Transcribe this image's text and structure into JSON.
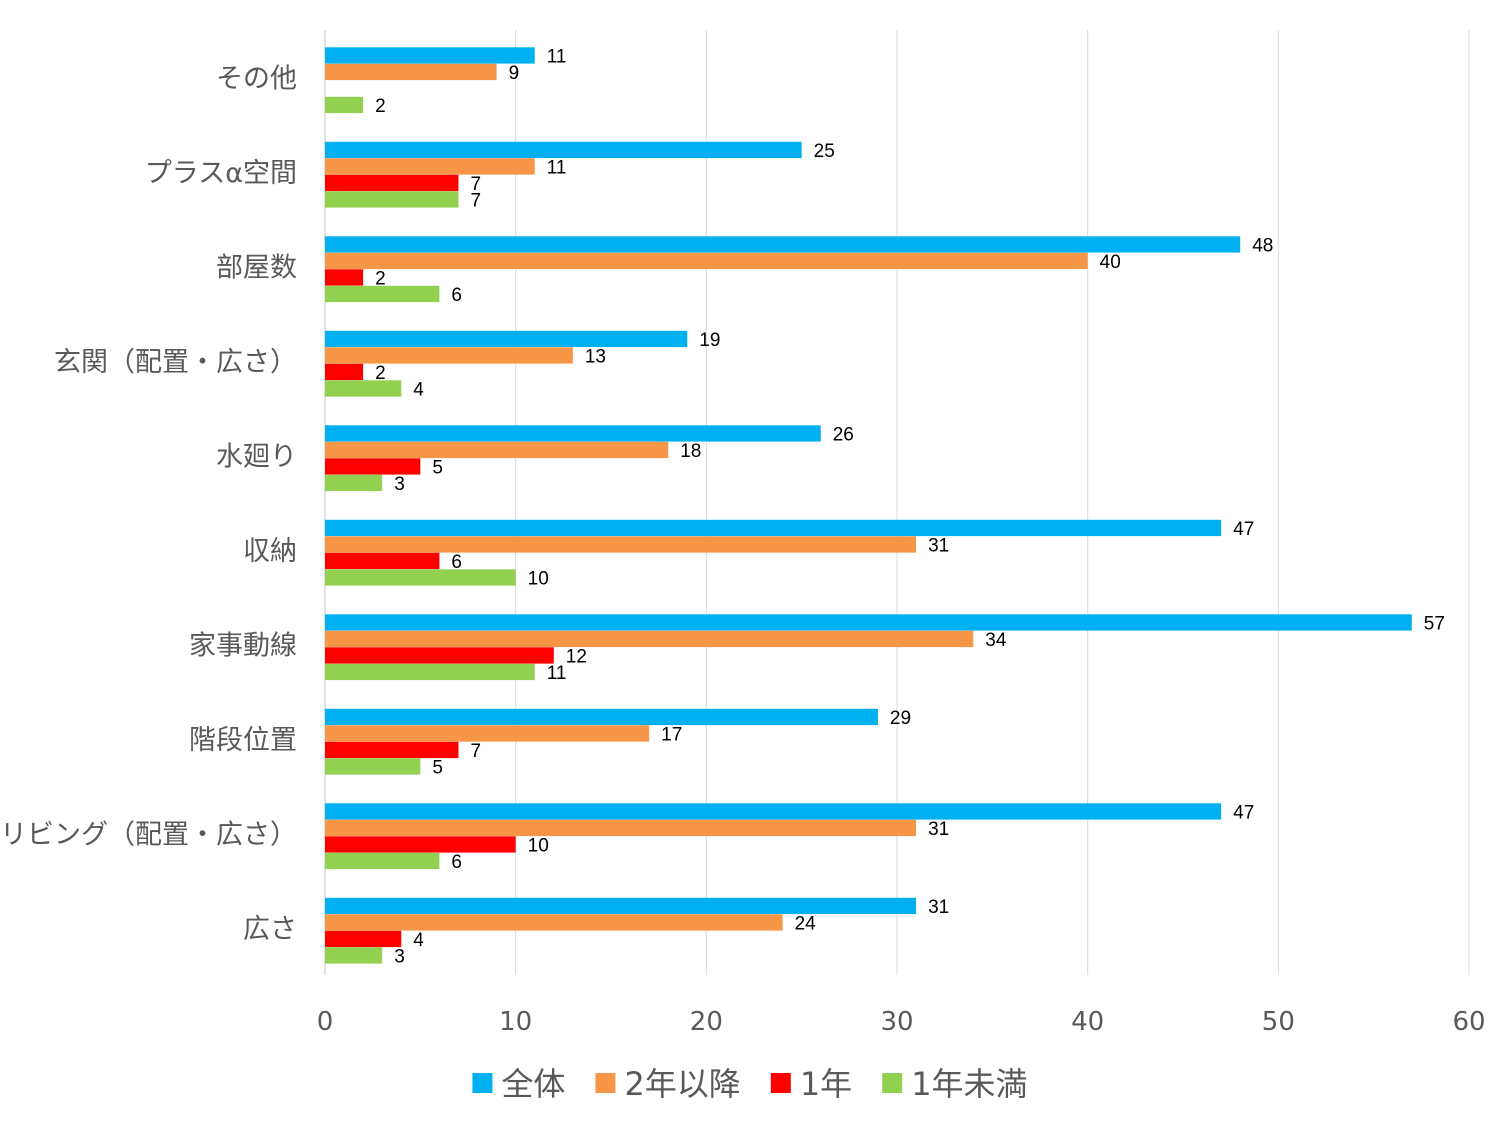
{
  "chart_data": {
    "type": "bar",
    "orientation": "horizontal",
    "categories": [
      "その他",
      "プラスα空間",
      "部屋数",
      "玄関（配置・広さ）",
      "水廻り",
      "収納",
      "家事動線",
      "階段位置",
      "リビング（配置・広さ）",
      "広さ"
    ],
    "series": [
      {
        "name": "全体",
        "color": "#00b0f0",
        "values": [
          11,
          25,
          48,
          19,
          26,
          47,
          57,
          29,
          47,
          31
        ]
      },
      {
        "name": "2年以降",
        "color": "#f79646",
        "values": [
          9,
          11,
          40,
          13,
          18,
          31,
          34,
          17,
          31,
          24
        ]
      },
      {
        "name": "1年",
        "color": "#ff0000",
        "values": [
          null,
          7,
          2,
          2,
          5,
          6,
          12,
          7,
          10,
          4
        ]
      },
      {
        "name": "1年未満",
        "color": "#92d050",
        "values": [
          2,
          7,
          6,
          4,
          3,
          10,
          11,
          5,
          6,
          3
        ]
      }
    ],
    "xlim": [
      0,
      60
    ],
    "xticks": [
      0,
      10,
      20,
      30,
      40,
      50,
      60
    ],
    "grid": "vertical",
    "legend_position": "bottom",
    "data_labels": true,
    "title": "",
    "xlabel": "",
    "ylabel": ""
  }
}
